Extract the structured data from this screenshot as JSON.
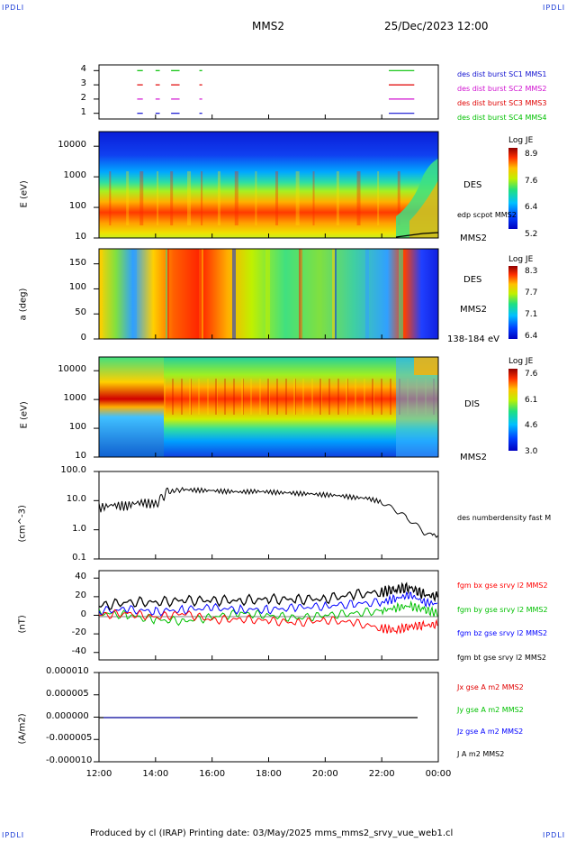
{
  "header": {
    "corner_tl": "IPDLI",
    "corner_tr": "IPDLI",
    "corner_bl": "IPDLI",
    "corner_br": "IPDLI",
    "spacecraft": "MMS2",
    "datetime": "25/Dec/2023 12:00"
  },
  "footer": {
    "text": "Produced by cl (IRAP)   Printing date: 03/May/2025   mms_mms2_srvy_vue_web1.cl"
  },
  "colors": {
    "mms1": "#1010d0",
    "mms2": "#d010d0",
    "mms3": "#e00000",
    "mms4": "#00c000",
    "bx": "#ff0000",
    "by": "#00c000",
    "bz": "#0000ff",
    "bt": "#000000"
  },
  "chart_data": [
    {
      "type": "line",
      "name": "burst-availability",
      "yticks": [
        "1",
        "2",
        "3",
        "4"
      ],
      "legend": [
        {
          "label": "des dist burst SC1 MMS1",
          "color": "#1010d0"
        },
        {
          "label": "des dist burst SC2 MMS2",
          "color": "#d010d0"
        },
        {
          "label": "des dist burst SC3 MMS3",
          "color": "#e00000"
        },
        {
          "label": "des dist burst SC4 MMS4",
          "color": "#00c000"
        }
      ],
      "intervals_hours": [
        [
          13.35,
          13.55
        ],
        [
          14.0,
          14.15
        ],
        [
          14.55,
          14.85
        ],
        [
          15.55,
          15.65
        ],
        [
          22.25,
          23.15
        ]
      ],
      "ylim": [
        0.6,
        4.4
      ]
    },
    {
      "type": "heatmap",
      "name": "des-energy-spectrogram",
      "ylabel": "E (eV)",
      "yscale": "log",
      "yticks": [
        "10",
        "100",
        "1000",
        "10000"
      ],
      "ylim": [
        10,
        30000
      ],
      "species_label": "DES",
      "sc_label": "MMS2",
      "overlay_label": "edp scpot MMS2",
      "colorbar": {
        "title": "Log JE",
        "ticks": [
          "8.9",
          "7.6",
          "6.4",
          "5.2"
        ],
        "range": [
          5.2,
          8.9
        ]
      }
    },
    {
      "type": "heatmap",
      "name": "des-pitch-angle",
      "ylabel": "a (deg)",
      "yticks": [
        "0",
        "50",
        "100",
        "150"
      ],
      "ylim": [
        0,
        180
      ],
      "species_label": "DES",
      "sc_label": "MMS2",
      "energy_label": "138-184 eV",
      "colorbar": {
        "title": "Log JE",
        "ticks": [
          "8.3",
          "7.7",
          "7.1",
          "6.4"
        ],
        "range": [
          6.4,
          8.3
        ]
      }
    },
    {
      "type": "heatmap",
      "name": "dis-energy-spectrogram",
      "ylabel": "E (eV)",
      "yscale": "log",
      "yticks": [
        "10",
        "100",
        "1000",
        "10000"
      ],
      "ylim": [
        10,
        30000
      ],
      "species_label": "DIS",
      "sc_label": "MMS2",
      "colorbar": {
        "title": "Log JE",
        "ticks": [
          "7.6",
          "6.1",
          "4.6",
          "3.0"
        ],
        "range": [
          3.0,
          7.6
        ]
      }
    },
    {
      "type": "line",
      "name": "density",
      "ylabel": "(cm^-3)",
      "yscale": "log",
      "yticks": [
        "0.1",
        "1.0",
        "10.0",
        "100.0"
      ],
      "ylim": [
        0.1,
        100
      ],
      "legend": [
        {
          "label": "des numberdensity fast M",
          "color": "#000000"
        }
      ],
      "series": [
        {
          "x": [
            12.0,
            12.5,
            13.0,
            13.5,
            14.0,
            14.2,
            14.4,
            14.6,
            15.0,
            15.5,
            16.0,
            16.5,
            17.0,
            17.5,
            18.0,
            18.5,
            19.0,
            19.5,
            20.0,
            20.5,
            21.0,
            21.5,
            22.0,
            22.3,
            22.6,
            22.9,
            23.2,
            23.5,
            23.8,
            24.0
          ],
          "values": [
            6,
            7,
            7,
            9,
            8,
            12,
            20,
            22,
            24,
            23,
            22,
            21,
            20,
            21,
            20,
            19,
            18,
            17,
            16,
            15,
            13,
            12,
            9,
            6,
            4,
            2.5,
            1.5,
            0.8,
            0.6,
            0.7
          ]
        }
      ]
    },
    {
      "type": "line",
      "name": "magnetic-field",
      "ylabel": "(nT)",
      "yticks": [
        "-40",
        "-20",
        "0",
        "20",
        "40"
      ],
      "ylim": [
        -48,
        48
      ],
      "legend": [
        {
          "label": "fgm bx gse srvy l2 MMS2",
          "color": "#ff0000"
        },
        {
          "label": "fgm by gse srvy l2 MMS2",
          "color": "#00c000"
        },
        {
          "label": "fgm bz gse srvy l2 MMS2",
          "color": "#0000ff"
        },
        {
          "label": "fgm bt gse srvy l2 MMS2",
          "color": "#000000"
        }
      ],
      "series": [
        {
          "x": [
            12,
            13,
            14,
            15,
            16,
            17,
            18,
            19,
            20,
            21,
            22,
            22.5,
            23,
            23.5,
            24
          ],
          "values": [
            0,
            2,
            -2,
            2,
            -5,
            -4,
            -6,
            -8,
            -5,
            -8,
            -14,
            -16,
            -12,
            -11,
            -10
          ]
        },
        {
          "x": [
            12,
            13,
            14,
            15,
            16,
            17,
            18,
            19,
            20,
            21,
            22,
            22.5,
            23,
            23.5,
            24
          ],
          "values": [
            3,
            0,
            -5,
            -6,
            -2,
            2,
            0,
            -3,
            0,
            2,
            5,
            8,
            10,
            6,
            2
          ]
        },
        {
          "x": [
            12,
            13,
            14,
            15,
            16,
            17,
            18,
            19,
            20,
            21,
            22,
            22.5,
            23,
            23.5,
            24
          ],
          "values": [
            5,
            6,
            4,
            6,
            8,
            6,
            6,
            8,
            10,
            12,
            14,
            18,
            22,
            14,
            12
          ]
        },
        {
          "x": [
            12,
            13,
            14,
            15,
            16,
            17,
            18,
            19,
            20,
            21,
            22,
            22.5,
            23,
            23.5,
            24
          ],
          "values": [
            10,
            14,
            14,
            16,
            16,
            16,
            17,
            17,
            18,
            22,
            25,
            28,
            30,
            22,
            20
          ]
        }
      ]
    },
    {
      "type": "line",
      "name": "current-density",
      "ylabel": "(A/m2)",
      "yticks": [
        "-0.000010",
        "-0.000005",
        "0.000000",
        "0.000005",
        "0.000010"
      ],
      "ylim": [
        -1e-05,
        1e-05
      ],
      "legend": [
        {
          "label": "Jx gse A m2 MMS2",
          "color": "#e00000"
        },
        {
          "label": "Jy gse A m2 MMS2",
          "color": "#00c000"
        },
        {
          "label": "Jz gse A m2 MMS2",
          "color": "#0000ff"
        },
        {
          "label": "J A m2 MMS2",
          "color": "#000000"
        }
      ],
      "series": [
        {
          "x": [
            12,
            23
          ],
          "values": [
            0,
            0
          ]
        }
      ]
    }
  ],
  "xaxis": {
    "ticks": [
      "12:00",
      "14:00",
      "16:00",
      "18:00",
      "20:00",
      "22:00",
      "00:00"
    ],
    "range_hours": [
      12,
      24
    ]
  }
}
